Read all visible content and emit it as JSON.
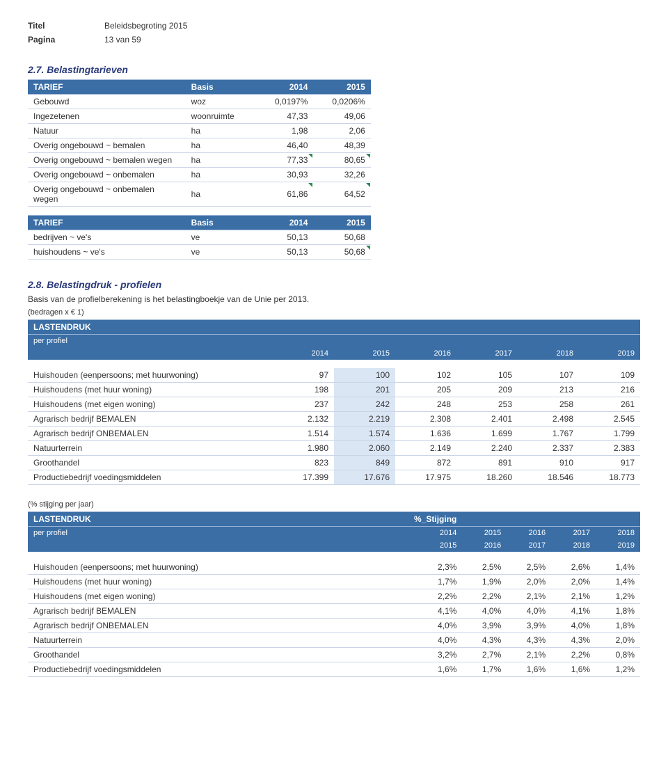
{
  "header": {
    "title_label": "Titel",
    "title_value": "Beleidsbegroting 2015",
    "page_label": "Pagina",
    "page_value": "13 van 59"
  },
  "sec27": {
    "heading": "2.7. Belastingtarieven",
    "table1": {
      "head": [
        "TARIEF",
        "Basis",
        "2014",
        "2015"
      ],
      "rows": [
        [
          "Gebouwd",
          "woz",
          "0,0197%",
          "0,0206%",
          []
        ],
        [
          "Ingezetenen",
          "woonruimte",
          "47,33",
          "49,06",
          []
        ],
        [
          "Natuur",
          "ha",
          "1,98",
          "2,06",
          []
        ],
        [
          "Overig ongebouwd ~ bemalen",
          "ha",
          "46,40",
          "48,39",
          []
        ],
        [
          "Overig ongebouwd ~ bemalen wegen",
          "ha",
          "77,33",
          "80,65",
          [
            2,
            3
          ]
        ],
        [
          "Overig ongebouwd ~ onbemalen",
          "ha",
          "30,93",
          "32,26",
          []
        ],
        [
          "Overig ongebouwd ~ onbemalen wegen",
          "ha",
          "61,86",
          "64,52",
          [
            2,
            3
          ]
        ]
      ]
    },
    "table2": {
      "head": [
        "TARIEF",
        "Basis",
        "2014",
        "2015"
      ],
      "rows": [
        [
          "bedrijven ~ ve's",
          "ve",
          "50,13",
          "50,68",
          []
        ],
        [
          "huishoudens ~ ve's",
          "ve",
          "50,13",
          "50,68",
          [
            3
          ]
        ]
      ]
    }
  },
  "sec28": {
    "heading": "2.8. Belastingdruk - profielen",
    "intro": "Basis van de profielberekening is het belastingboekje van de Unie per 2013.",
    "note1": "(bedragen x € 1)",
    "lastendruk": {
      "head_top": [
        "LASTENDRUK",
        "",
        "",
        "",
        "",
        "",
        ""
      ],
      "head_sub": [
        "per profiel",
        "",
        "",
        "",
        "",
        "",
        ""
      ],
      "years": [
        "",
        "2014",
        "2015",
        "2016",
        "2017",
        "2018",
        "2019"
      ],
      "rows": [
        [
          "Huishouden (eenpersoons; met huurwoning)",
          "97",
          "100",
          "102",
          "105",
          "107",
          "109"
        ],
        [
          "Huishoudens (met huur woning)",
          "198",
          "201",
          "205",
          "209",
          "213",
          "216"
        ],
        [
          "Huishoudens (met eigen woning)",
          "237",
          "242",
          "248",
          "253",
          "258",
          "261"
        ],
        [
          "Agrarisch bedrijf BEMALEN",
          "2.132",
          "2.219",
          "2.308",
          "2.401",
          "2.498",
          "2.545"
        ],
        [
          "Agrarisch bedrijf ONBEMALEN",
          "1.514",
          "1.574",
          "1.636",
          "1.699",
          "1.767",
          "1.799"
        ],
        [
          "Natuurterrein",
          "1.980",
          "2.060",
          "2.149",
          "2.240",
          "2.337",
          "2.383"
        ],
        [
          "Groothandel",
          "823",
          "849",
          "872",
          "891",
          "910",
          "917"
        ],
        [
          "Productiebedrijf voedingsmiddelen",
          "17.399",
          "17.676",
          "17.975",
          "18.260",
          "18.546",
          "18.773"
        ]
      ]
    },
    "note2": "(% stijging per jaar)",
    "stijging": {
      "head_top": [
        "LASTENDRUK",
        "%_Stijging",
        "",
        "",
        "",
        ""
      ],
      "head_sub": [
        "per profiel",
        "2014",
        "2015",
        "2016",
        "2017",
        "2018"
      ],
      "head_sub2": [
        "",
        "2015",
        "2016",
        "2017",
        "2018",
        "2019"
      ],
      "rows": [
        [
          "Huishouden (eenpersoons; met huurwoning)",
          "2,3%",
          "2,5%",
          "2,5%",
          "2,6%",
          "1,4%"
        ],
        [
          "Huishoudens (met huur woning)",
          "1,7%",
          "1,9%",
          "2,0%",
          "2,0%",
          "1,4%"
        ],
        [
          "Huishoudens (met eigen woning)",
          "2,2%",
          "2,2%",
          "2,1%",
          "2,1%",
          "1,2%"
        ],
        [
          "Agrarisch bedrijf BEMALEN",
          "4,1%",
          "4,0%",
          "4,0%",
          "4,1%",
          "1,8%"
        ],
        [
          "Agrarisch bedrijf ONBEMALEN",
          "4,0%",
          "3,9%",
          "3,9%",
          "4,0%",
          "1,8%"
        ],
        [
          "Natuurterrein",
          "4,0%",
          "4,3%",
          "4,3%",
          "4,3%",
          "2,0%"
        ],
        [
          "Groothandel",
          "3,2%",
          "2,7%",
          "2,1%",
          "2,2%",
          "0,8%"
        ],
        [
          "Productiebedrijf voedingsmiddelen",
          "1,6%",
          "1,7%",
          "1,6%",
          "1,6%",
          "1,2%"
        ]
      ]
    }
  }
}
